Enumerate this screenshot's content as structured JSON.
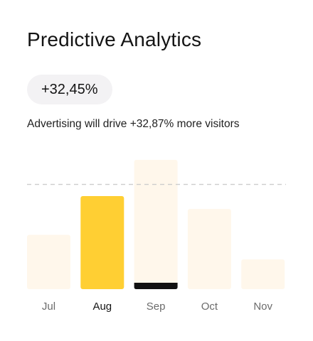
{
  "card": {
    "title": "Predictive Analytics",
    "change_badge": "+32,45%",
    "description": "Advertising will drive +32,87% more visitors"
  },
  "colors": {
    "bar_default": "#fff7eb",
    "bar_active": "#ffcf33",
    "bar_marker": "#111111",
    "guide_line": "#cccccc",
    "label_default": "#6b6b6b",
    "label_active": "#141414"
  },
  "chart_data": {
    "type": "bar",
    "categories": [
      "Jul",
      "Aug",
      "Sep",
      "Oct",
      "Nov"
    ],
    "values": [
      42,
      72,
      100,
      62,
      23
    ],
    "active_category": "Aug",
    "marked_category": "Sep",
    "reference_value": 81,
    "ylim": [
      0,
      100
    ],
    "grid": false,
    "title": "",
    "xlabel": "",
    "ylabel": ""
  }
}
